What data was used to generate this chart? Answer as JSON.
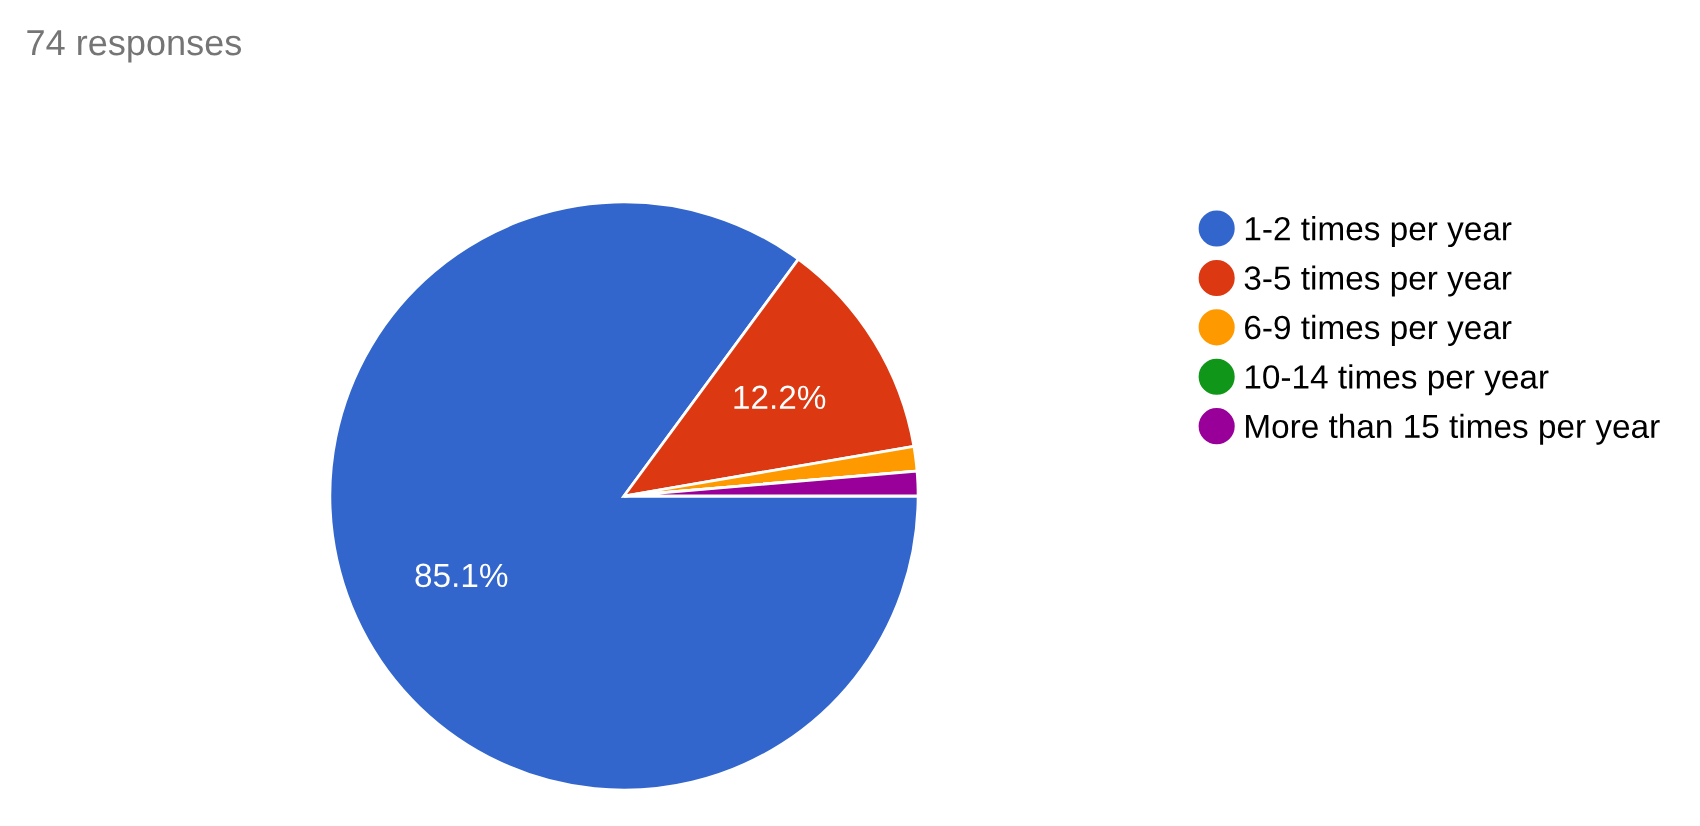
{
  "chart_data": {
    "type": "pie",
    "title": "74 responses",
    "categories": [
      "1-2 times per year",
      "3-5 times per year",
      "6-9 times per year",
      "10-14 times per year",
      "More than 15 times per year"
    ],
    "values": [
      85.1,
      12.2,
      1.35,
      0,
      1.35
    ],
    "colors": [
      "#3366cc",
      "#dc3912",
      "#ff9900",
      "#109618",
      "#990099"
    ],
    "value_labels": [
      "85.1%",
      "12.2%",
      null,
      null,
      null
    ],
    "legend": "right"
  }
}
